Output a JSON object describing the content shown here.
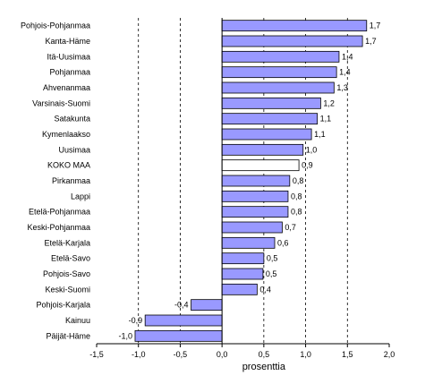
{
  "chart_data": {
    "type": "bar",
    "orientation": "horizontal",
    "categories": [
      "Pohjois-Pohjanmaa",
      "Kanta-Häme",
      "Itä-Uusimaa",
      "Pohjanmaa",
      "Ahvenanmaa",
      "Varsinais-Suomi",
      "Satakunta",
      "Kymenlaakso",
      "Uusimaa",
      "KOKO MAA",
      "Pirkanmaa",
      "Lappi",
      "Etelä-Pohjanmaa",
      "Keski-Pohjanmaa",
      "Etelä-Karjala",
      "Etelä-Savo",
      "Pohjois-Savo",
      "Keski-Suomi",
      "Pohjois-Karjala",
      "Kainuu",
      "Päijät-Häme"
    ],
    "values": [
      1.73,
      1.68,
      1.4,
      1.37,
      1.34,
      1.18,
      1.14,
      1.07,
      0.97,
      0.92,
      0.81,
      0.79,
      0.79,
      0.72,
      0.63,
      0.5,
      0.49,
      0.42,
      -0.37,
      -0.92,
      -1.04
    ],
    "value_labels": [
      "1,7",
      "1,7",
      "1,4",
      "1,4",
      "1,3",
      "1,2",
      "1,1",
      "1,1",
      "1,0",
      "0,9",
      "0,8",
      "0,8",
      "0,8",
      "0,7",
      "0,6",
      "0,5",
      "0,5",
      "0,4",
      "-0,4",
      "-0,9",
      "-1,0"
    ],
    "highlight_category": "KOKO MAA",
    "xlim": [
      -1.5,
      2.0
    ],
    "xticks": [
      -1.5,
      -1.0,
      -0.5,
      0.0,
      0.5,
      1.0,
      1.5,
      2.0
    ],
    "xtick_labels": [
      "-1,5",
      "-1,0",
      "-0,5",
      "0,0",
      "0,5",
      "1,0",
      "1,5",
      "2,0"
    ],
    "xlabel": "prosenttia",
    "title": "",
    "grid": "dashed vertical at 1.0 intervals",
    "colors": {
      "bar_fill": "#9999ff",
      "highlight_fill": "#ffffff",
      "bar_stroke": "#000000",
      "grid": "#000000"
    }
  }
}
